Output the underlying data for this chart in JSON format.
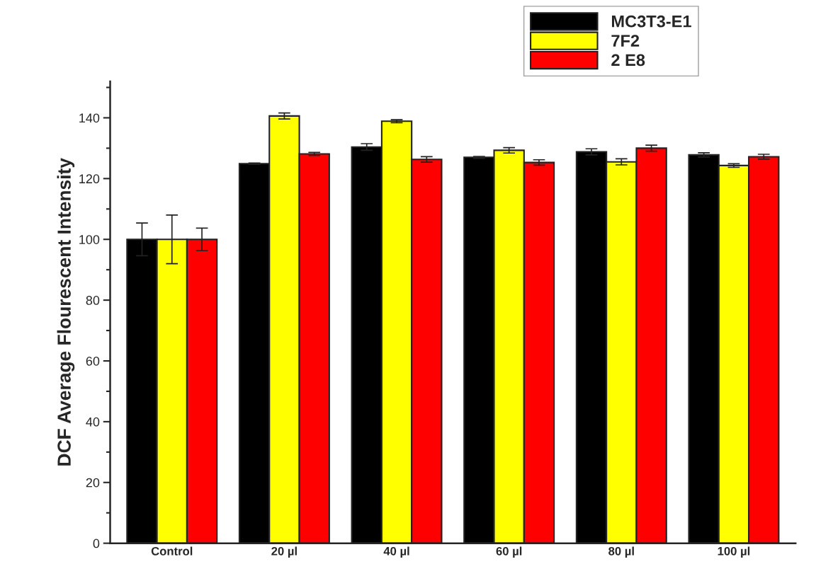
{
  "chart_data": {
    "type": "bar",
    "ylabel": "DCF Average Flourescent Intensity",
    "categories": [
      "Control",
      "20 µl",
      "40 µl",
      "60 µl",
      "80 µl",
      "100 µl"
    ],
    "series": [
      {
        "name": "MC3T3-E1",
        "color": "#000000",
        "values": [
          100,
          124.9,
          130.4,
          127.0,
          128.8,
          127.8
        ],
        "errors": [
          5.4,
          0.2,
          1.1,
          0.3,
          1.0,
          0.7
        ]
      },
      {
        "name": "7F2",
        "color": "#ffff00",
        "values": [
          100,
          140.6,
          138.9,
          129.3,
          125.5,
          124.3
        ],
        "errors": [
          8.0,
          1.0,
          0.5,
          0.9,
          1.0,
          0.6
        ]
      },
      {
        "name": "2 E8",
        "color": "#ff0000",
        "values": [
          100,
          128.1,
          126.3,
          125.3,
          130.0,
          127.2
        ],
        "errors": [
          3.7,
          0.5,
          0.9,
          0.9,
          1.0,
          0.8
        ]
      }
    ],
    "ylim": [
      0,
      152
    ],
    "yticks": [
      0,
      20,
      40,
      60,
      80,
      100,
      120,
      140
    ],
    "grid": false,
    "legend": "top right"
  }
}
